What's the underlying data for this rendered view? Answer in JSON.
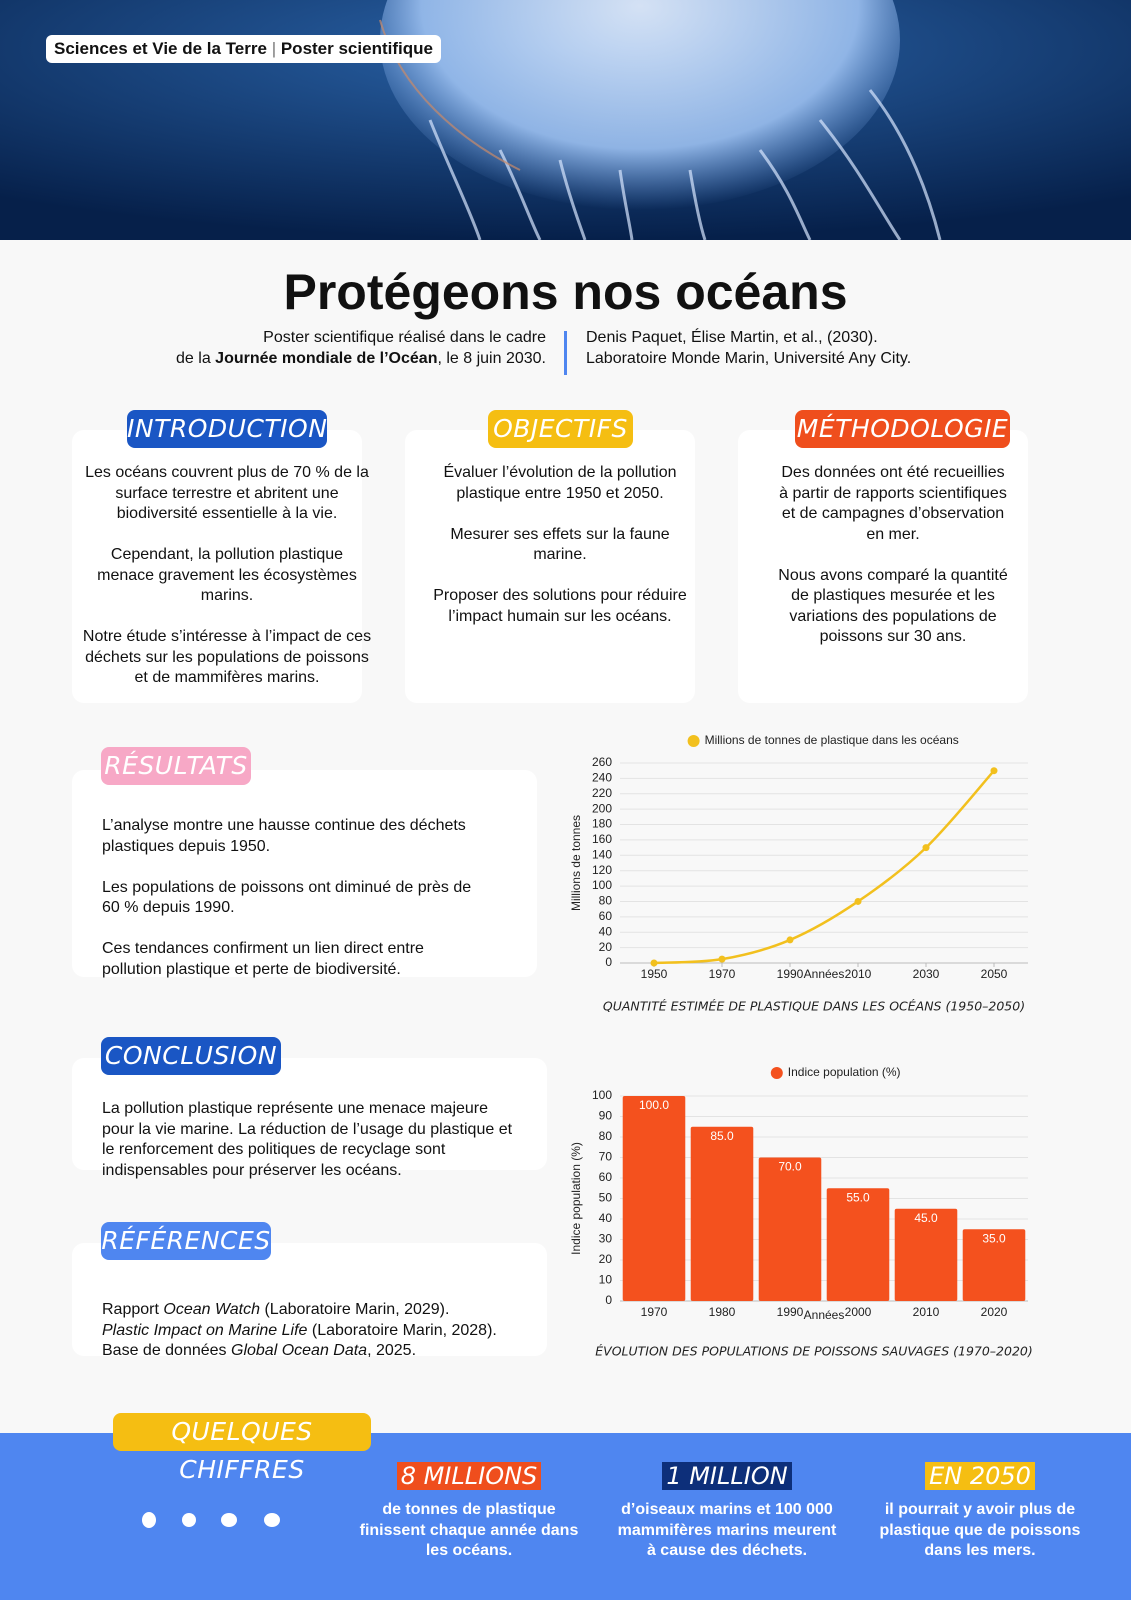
{
  "header": {
    "badge": [
      "Sciences et Vie de la Terre",
      "Poster scientifique"
    ]
  },
  "title": "Protégeons nos océans",
  "subtitle_left": [
    "Poster scientifique réalisé dans le cadre",
    "de la ",
    "Journée mondiale de l’Océan",
    ", le 8 juin 2030."
  ],
  "subtitle_right": [
    "Denis Paquet, Élise Martin, et al., (2030).",
    "Laboratoire Monde Marin, Université Any City."
  ],
  "introduction": {
    "heading": "INTRODUCTION",
    "paragraphs": [
      "Les océans couvrent plus de 70 % de la surface terrestre et abritent une biodiversité essentielle à la vie.",
      "Cependant, la pollution plastique menace gravement les écosystèmes marins.",
      "Notre étude s’intéresse à l’impact de ces déchets sur les populations de poissons et de mammifères marins."
    ]
  },
  "objectifs": {
    "heading": "OBJECTIFS",
    "paragraphs": [
      "Évaluer l’évolution de la pollution plastique entre 1950 et 2050.",
      "Mesurer ses effets sur la faune marine.",
      "Proposer des solutions pour réduire l’impact humain sur les océans."
    ]
  },
  "methodologie": {
    "heading": "MÉTHODOLOGIE",
    "paragraphs": [
      "Des données ont été recueillies à partir de rapports scientifiques et de campagnes d’observation en mer.",
      "Nous avons comparé la quantité de plastiques mesurée et les variations des populations de poissons sur 30 ans."
    ]
  },
  "resultats": {
    "heading": "RÉSULTATS",
    "paragraphs": [
      "L’analyse montre une hausse continue des déchets plastiques depuis 1950.",
      "Les populations de poissons ont diminué de près de 60 % depuis 1990.",
      "Ces tendances confirment un lien direct entre pollution plastique et perte de biodiversité."
    ]
  },
  "conclusion": {
    "heading": "CONCLUSION",
    "text": "La pollution plastique représente une menace majeure pour la vie marine. La réduction de l’usage du plastique et le renforcement des politiques de recyclage sont indispensables pour préserver les océans."
  },
  "references": {
    "heading": "RÉFÉRENCES",
    "items": [
      [
        "Rapport ",
        "Ocean Watch",
        " (Laboratoire Marin, 2029)."
      ],
      [
        "Plastic Impact on Marine Life",
        " (Laboratoire Marin, 2028)."
      ],
      [
        "Base de données ",
        "Global Ocean Data",
        ", 2025."
      ]
    ]
  },
  "chart_data": [
    {
      "type": "line",
      "title": "QUANTITÉ ESTIMÉE DE PLASTIQUE DANS LES OCÉANS (1950–2050)",
      "x_label": "Années",
      "y_label": "Millions de tonnes",
      "x": [
        1950,
        1970,
        1990,
        2010,
        2030,
        2050
      ],
      "series": [
        {
          "name": "Millions de tonnes de plastique dans les océans",
          "color": "#f2c01e",
          "values": [
            0,
            5,
            30,
            80,
            150,
            250
          ]
        }
      ],
      "xlim": [
        1940,
        2060
      ],
      "xticks": [
        1950,
        1970,
        1990,
        2010,
        2030,
        2050
      ],
      "ylim": [
        0,
        260
      ],
      "yticks": [
        0,
        20,
        40,
        60,
        80,
        100,
        120,
        140,
        160,
        180,
        200,
        220,
        240,
        260
      ],
      "grid": true
    },
    {
      "type": "bar",
      "title": "ÉVOLUTION DES POPULATIONS DE POISSONS SAUVAGES (1970–2020)",
      "x_label": "Années",
      "y_label": "Indice population (%)",
      "categories": [
        "1970",
        "1980",
        "1990",
        "2000",
        "2010",
        "2020"
      ],
      "series": [
        {
          "name": "Indice population (%)",
          "color": "#f4511e",
          "values": [
            100,
            85,
            70,
            55,
            45,
            35
          ],
          "value_labels": [
            "100.0",
            "85.0",
            "70.0",
            "55.0",
            "45.0",
            "35.0"
          ]
        }
      ],
      "ylim": [
        0,
        100
      ],
      "yticks": [
        0,
        10,
        20,
        30,
        40,
        50,
        60,
        70,
        80,
        90,
        100
      ],
      "grid": true
    }
  ],
  "footer": {
    "heading": "QUELQUES CHIFFRES",
    "stats": [
      {
        "value": "8 MILLIONS",
        "text": "de tonnes de plastique finissent chaque année dans les océans."
      },
      {
        "value": "1 MILLION",
        "text": "d’oiseaux marins et 100 000 mammifères marins meurent à cause des déchets."
      },
      {
        "value": "EN 2050",
        "text": "il pourrait y avoir plus de plastique que de poissons dans les mers."
      }
    ]
  }
}
